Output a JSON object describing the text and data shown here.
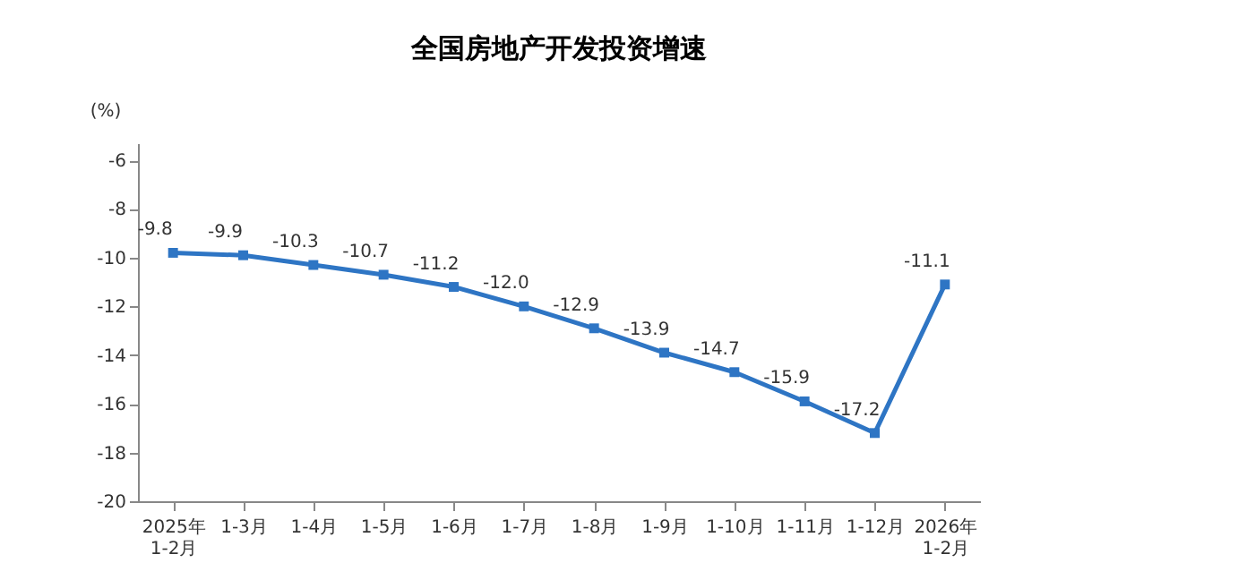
{
  "chart_data": {
    "type": "line",
    "title": "全国房地产开发投资增速",
    "ylabel": "(%)",
    "categories": [
      "2025年\n1-2月",
      "1-3月",
      "1-4月",
      "1-5月",
      "1-6月",
      "1-7月",
      "1-8月",
      "1-9月",
      "1-10月",
      "1-11月",
      "1-12月",
      "2026年\n1-2月"
    ],
    "series": [
      {
        "color": "#2e75c4",
        "values": [
          -9.8,
          -9.9,
          -10.3,
          -10.7,
          -11.2,
          -12.0,
          -12.9,
          -13.9,
          -14.7,
          -15.9,
          -17.2,
          -11.1
        ],
        "value_labels": [
          "-9.8",
          "-9.9",
          "-10.3",
          "-10.7",
          "-11.2",
          "-12.0",
          "-12.9",
          "-13.9",
          "-14.7",
          "-15.9",
          "-17.2",
          "-11.1"
        ]
      }
    ],
    "ylim": [
      -20,
      -5.3
    ],
    "yticks": [
      -20,
      -18,
      -16,
      -14,
      -12,
      -10,
      -8,
      -6
    ],
    "grid": false,
    "marker": "square",
    "line_style": "solid"
  }
}
